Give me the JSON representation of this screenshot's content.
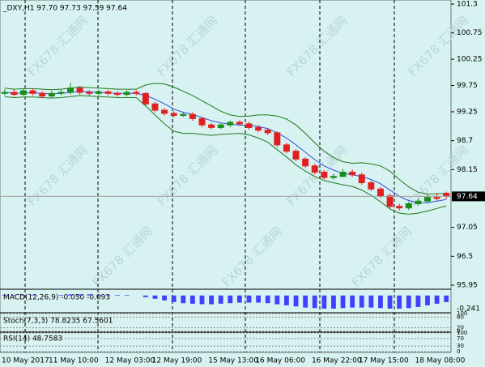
{
  "chart_data": {
    "type": "candlestick",
    "header": "_DXY,H1  97.70 97.73 97.59 97.64",
    "watermark": "FX678 汇通网",
    "categories": [
      "10 May 2017",
      null,
      null,
      null,
      null,
      "11 May 10:00",
      null,
      null,
      null,
      null,
      null,
      "12 May 03:00",
      null,
      null,
      null,
      null,
      "12 May 19:00",
      null,
      null,
      null,
      null,
      null,
      "15 May 13:00",
      null,
      null,
      null,
      null,
      "16 May 06:00",
      null,
      null,
      null,
      null,
      null,
      "16 May 22:00",
      null,
      null,
      null,
      null,
      "17 May 15:00",
      null,
      null,
      null,
      null,
      null,
      "18 May 08:00",
      null,
      null,
      null
    ],
    "open": [
      99.6,
      99.62,
      99.58,
      99.65,
      99.6,
      99.55,
      99.6,
      99.62,
      99.7,
      99.62,
      99.6,
      99.63,
      99.6,
      99.58,
      99.62,
      99.6,
      99.4,
      99.28,
      99.22,
      99.18,
      99.2,
      99.12,
      99.0,
      98.95,
      99.0,
      99.05,
      99.02,
      98.95,
      98.9,
      98.85,
      98.62,
      98.5,
      98.35,
      98.22,
      98.1,
      98.0,
      98.02,
      98.1,
      98.05,
      97.9,
      97.78,
      97.65,
      97.45,
      97.42,
      97.5,
      97.55,
      97.62,
      97.7
    ],
    "high": [
      99.68,
      99.67,
      99.69,
      99.7,
      99.64,
      99.65,
      99.67,
      99.8,
      99.74,
      99.66,
      99.67,
      99.67,
      99.64,
      99.66,
      99.66,
      99.62,
      99.44,
      99.32,
      99.26,
      99.25,
      99.24,
      99.15,
      99.04,
      99.04,
      99.08,
      99.09,
      99.06,
      98.99,
      98.94,
      98.88,
      98.66,
      98.54,
      98.39,
      98.26,
      98.14,
      98.07,
      98.16,
      98.15,
      98.09,
      97.94,
      97.82,
      97.69,
      97.5,
      97.54,
      97.6,
      97.68,
      97.7,
      97.73
    ],
    "low": [
      99.56,
      99.54,
      99.55,
      99.56,
      99.51,
      99.52,
      99.56,
      99.58,
      99.58,
      99.56,
      99.56,
      99.56,
      99.54,
      99.54,
      99.56,
      99.36,
      99.24,
      99.18,
      99.14,
      99.15,
      99.08,
      98.96,
      98.91,
      98.92,
      98.96,
      98.98,
      98.91,
      98.86,
      98.81,
      98.58,
      98.46,
      98.31,
      98.18,
      98.06,
      97.96,
      97.96,
      98.0,
      98.01,
      97.86,
      97.74,
      97.61,
      97.41,
      97.37,
      97.38,
      97.46,
      97.51,
      97.56,
      97.59
    ],
    "close": [
      99.62,
      99.58,
      99.65,
      99.6,
      99.55,
      99.6,
      99.62,
      99.7,
      99.62,
      99.6,
      99.63,
      99.6,
      99.58,
      99.62,
      99.6,
      99.4,
      99.28,
      99.22,
      99.18,
      99.2,
      99.12,
      99.0,
      98.95,
      99.0,
      99.05,
      99.02,
      98.95,
      98.9,
      98.85,
      98.62,
      98.5,
      98.35,
      98.22,
      98.1,
      98.0,
      98.02,
      98.1,
      98.05,
      97.9,
      97.78,
      97.65,
      97.45,
      97.42,
      97.5,
      97.55,
      97.62,
      97.6,
      97.64
    ],
    "up_color": "#1a8c1a",
    "down_color": "#e02020",
    "series": [
      {
        "color": "#1e7a1e",
        "values": [
          99.7,
          99.68,
          99.69,
          99.69,
          99.68,
          99.67,
          99.68,
          99.7,
          99.72,
          99.71,
          99.7,
          99.69,
          99.68,
          99.68,
          99.68,
          99.76,
          99.79,
          99.78,
          99.72,
          99.64,
          99.56,
          99.46,
          99.36,
          99.26,
          99.19,
          99.16,
          99.17,
          99.19,
          99.19,
          99.17,
          99.11,
          99.0,
          98.84,
          98.66,
          98.5,
          98.38,
          98.3,
          98.27,
          98.28,
          98.26,
          98.22,
          98.12,
          97.96,
          97.82,
          97.72,
          97.68,
          97.69,
          97.7
        ]
      },
      {
        "color": "#3050e0",
        "values": [
          99.62,
          99.6,
          99.61,
          99.61,
          99.6,
          99.59,
          99.6,
          99.62,
          99.64,
          99.63,
          99.62,
          99.61,
          99.6,
          99.6,
          99.6,
          99.56,
          99.49,
          99.4,
          99.3,
          99.24,
          99.2,
          99.14,
          99.08,
          99.04,
          99.01,
          99.0,
          98.99,
          98.97,
          98.93,
          98.85,
          98.75,
          98.62,
          98.48,
          98.34,
          98.22,
          98.14,
          98.08,
          98.05,
          98.02,
          97.96,
          97.88,
          97.76,
          97.64,
          97.56,
          97.52,
          97.52,
          97.55,
          97.58
        ]
      },
      {
        "color": "#1e7a1e",
        "values": [
          99.54,
          99.52,
          99.53,
          99.53,
          99.52,
          99.51,
          99.52,
          99.54,
          99.56,
          99.55,
          99.54,
          99.53,
          99.52,
          99.52,
          99.52,
          99.36,
          99.19,
          99.02,
          98.88,
          98.84,
          98.84,
          98.82,
          98.8,
          98.82,
          98.83,
          98.84,
          98.81,
          98.75,
          98.67,
          98.53,
          98.39,
          98.24,
          98.12,
          98.02,
          97.94,
          97.9,
          97.86,
          97.83,
          97.76,
          97.66,
          97.54,
          97.4,
          97.32,
          97.3,
          97.32,
          97.36,
          97.41,
          97.46
        ]
      }
    ],
    "ylim": [
      95.95,
      101.3
    ],
    "yticks": [
      101.3,
      100.75,
      100.25,
      99.75,
      99.25,
      98.7,
      98.15,
      97.05,
      96.5,
      95.95
    ],
    "last_price": 97.64,
    "macd": {
      "label": "MACD(12,26,9) -0.050 -0.093",
      "tick": -0.241,
      "ylim": [
        -0.3,
        0.1
      ],
      "color": "#4040ff",
      "values": [
        0.01,
        0.01,
        0.01,
        0.01,
        0.0,
        0.0,
        0.01,
        0.02,
        0.02,
        0.02,
        0.01,
        0.01,
        0.01,
        0.01,
        0.0,
        -0.03,
        -0.06,
        -0.09,
        -0.12,
        -0.14,
        -0.15,
        -0.16,
        -0.16,
        -0.15,
        -0.14,
        -0.13,
        -0.13,
        -0.13,
        -0.14,
        -0.16,
        -0.18,
        -0.2,
        -0.22,
        -0.23,
        -0.24,
        -0.24,
        -0.23,
        -0.22,
        -0.22,
        -0.22,
        -0.23,
        -0.24,
        -0.24,
        -0.23,
        -0.21,
        -0.18,
        -0.15,
        -0.12
      ]
    },
    "stoch": {
      "label": "Stoch(7,3,3) 78.8235 67.5601",
      "yticks": [
        100,
        80,
        20,
        0
      ],
      "ylim": [
        0,
        100
      ]
    },
    "rsi": {
      "label": "RSI(14) 48.7583",
      "yticks": [
        100,
        70,
        30,
        0
      ],
      "ylim": [
        0,
        100
      ]
    }
  }
}
